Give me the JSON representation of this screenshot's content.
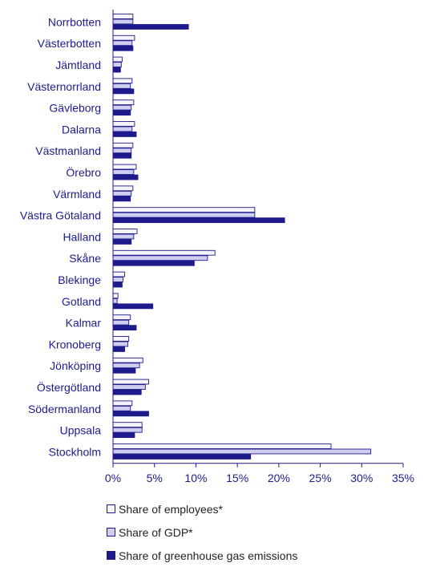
{
  "chart_data": {
    "type": "bar",
    "orientation": "horizontal",
    "categories": [
      "Norrbotten",
      "Västerbotten",
      "Jämtland",
      "Västernorrland",
      "Gävleborg",
      "Dalarna",
      "Västmanland",
      "Örebro",
      "Värmland",
      "Västra Götaland",
      "Halland",
      "Skåne",
      "Blekinge",
      "Gotland",
      "Kalmar",
      "Kronoberg",
      "Jönköping",
      "Östergötland",
      "Södermanland",
      "Uppsala",
      "Stockholm"
    ],
    "series": [
      {
        "name": "Share of employees*",
        "color": "#f4f4fa",
        "values": [
          2.4,
          2.6,
          1.1,
          2.3,
          2.5,
          2.6,
          2.4,
          2.8,
          2.4,
          17.1,
          2.9,
          12.3,
          1.4,
          0.6,
          2.1,
          1.9,
          3.6,
          4.3,
          2.3,
          3.5,
          26.3
        ]
      },
      {
        "name": "Share of GDP*",
        "color": "#cfcdf0",
        "values": [
          2.4,
          2.3,
          1.0,
          2.1,
          2.2,
          2.3,
          2.2,
          2.5,
          2.2,
          17.1,
          2.5,
          11.4,
          1.2,
          0.5,
          1.9,
          1.8,
          3.2,
          3.9,
          2.1,
          3.5,
          31.1
        ]
      },
      {
        "name": "Share of greenhouse gas emissions",
        "color": "#1d1b8c",
        "values": [
          9.1,
          2.4,
          0.9,
          2.5,
          2.1,
          2.8,
          2.2,
          3.0,
          2.1,
          20.7,
          2.2,
          9.8,
          1.1,
          4.8,
          2.8,
          1.4,
          2.7,
          3.4,
          4.3,
          2.6,
          16.6
        ]
      }
    ],
    "x_ticks": [
      "0%",
      "5%",
      "10%",
      "15%",
      "20%",
      "25%",
      "30%",
      "35%"
    ],
    "xlim": [
      0,
      35
    ],
    "grid": false,
    "legend_position": "bottom",
    "title": "",
    "xlabel": "",
    "ylabel": ""
  },
  "colors": {
    "category_label": "#1d1b8c",
    "tick_label": "#1d1b8c",
    "axis": "#1d1b8c",
    "bar_border": "#1d1b8c"
  }
}
